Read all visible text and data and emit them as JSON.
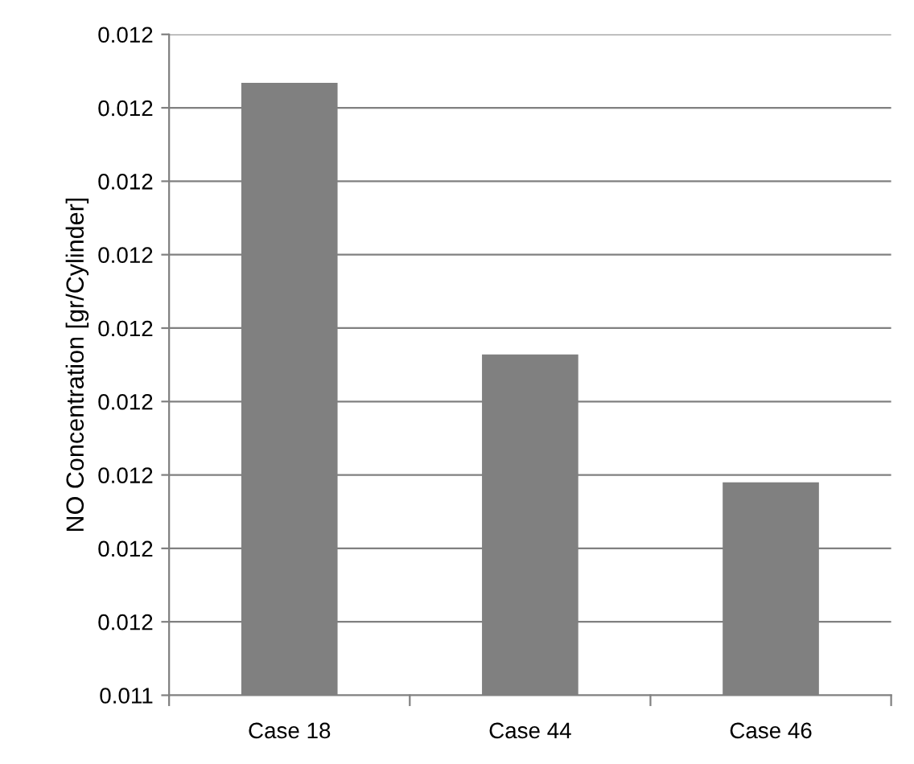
{
  "chart_data": {
    "type": "bar",
    "ylabel": "NO Concentration [gr/Cylinder]",
    "categories": [
      "Case 18",
      "Case 44",
      "Case 46"
    ],
    "values": [
      0.011867,
      0.011682,
      0.011595
    ],
    "color": "#808080",
    "ylim": [
      0.01145,
      0.0119
    ],
    "yticks": [
      {
        "value": 0.01145,
        "label": "0.011"
      },
      {
        "value": 0.0115,
        "label": "0.012"
      },
      {
        "value": 0.01155,
        "label": "0.012"
      },
      {
        "value": 0.0116,
        "label": "0.012"
      },
      {
        "value": 0.01165,
        "label": "0.012"
      },
      {
        "value": 0.0117,
        "label": "0.012"
      },
      {
        "value": 0.01175,
        "label": "0.012"
      },
      {
        "value": 0.0118,
        "label": "0.012"
      },
      {
        "value": 0.01185,
        "label": "0.012"
      },
      {
        "value": 0.0119,
        "label": "0.012"
      }
    ],
    "grid": "y"
  }
}
